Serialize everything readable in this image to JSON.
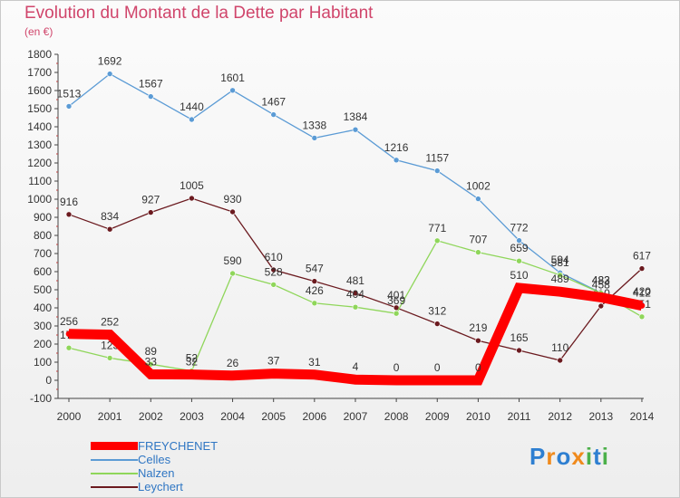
{
  "header": {
    "title": "Evolution du Montant de la Dette par Habitant",
    "unit": "(en €)"
  },
  "legend": [
    {
      "name": "FREYCHENET",
      "color": "#ff0000"
    },
    {
      "name": "Celles",
      "color": "#5b9bd5"
    },
    {
      "name": "Nalzen",
      "color": "#8fd65a"
    },
    {
      "name": "Leychert",
      "color": "#6b1a1f"
    }
  ],
  "logo": {
    "text": "Proxiti"
  },
  "chart_data": {
    "type": "line",
    "title": "Evolution du Montant de la Dette par Habitant",
    "ylabel": "(en €)",
    "xlabel": "",
    "x": [
      2000,
      2001,
      2002,
      2003,
      2004,
      2005,
      2006,
      2007,
      2008,
      2009,
      2010,
      2011,
      2012,
      2013,
      2014
    ],
    "ylim": [
      -100,
      1800
    ],
    "yticks": [
      -100,
      0,
      100,
      200,
      300,
      400,
      500,
      600,
      700,
      800,
      900,
      1000,
      1100,
      1200,
      1300,
      1400,
      1500,
      1600,
      1700,
      1800
    ],
    "grid": false,
    "legend_position": "bottom-left",
    "series": [
      {
        "name": "FREYCHENET",
        "color": "#ff0000",
        "values": [
          256,
          252,
          33,
          32,
          26,
          37,
          31,
          4,
          0,
          0,
          0,
          510,
          489,
          458,
          412
        ]
      },
      {
        "name": "Celles",
        "color": "#5b9bd5",
        "values": [
          1513,
          1692,
          1567,
          1440,
          1601,
          1467,
          1338,
          1384,
          1216,
          1157,
          1002,
          772,
          594,
          483,
          420
        ]
      },
      {
        "name": "Nalzen",
        "color": "#8fd65a",
        "values": [
          179,
          123,
          89,
          52,
          590,
          528,
          426,
          404,
          369,
          771,
          707,
          659,
          581,
          482,
          351
        ]
      },
      {
        "name": "Leychert",
        "color": "#6b1a1f",
        "values": [
          916,
          834,
          927,
          1005,
          930,
          610,
          547,
          481,
          401,
          312,
          219,
          165,
          110,
          410,
          617
        ]
      }
    ]
  }
}
